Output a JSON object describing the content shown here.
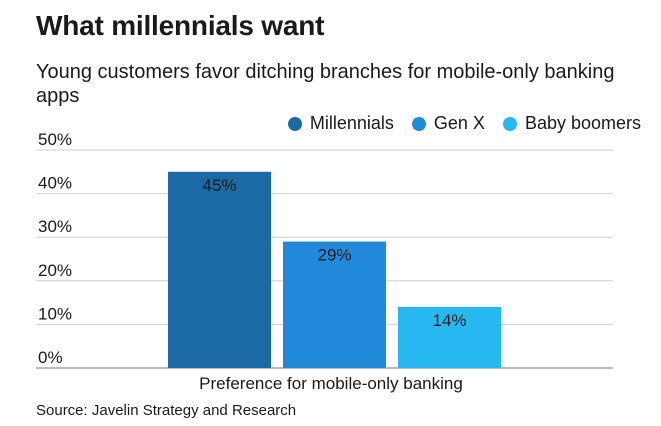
{
  "title": "What millennials want",
  "subtitle": "Young customers favor ditching branches for mobile-only banking apps",
  "source": "Source: Javelin Strategy and Research",
  "chart_data": {
    "type": "bar",
    "categories": [
      "Preference for mobile-only banking"
    ],
    "series": [
      {
        "name": "Millennials",
        "values": [
          45
        ],
        "label": "45%",
        "color": "#1b6aa6"
      },
      {
        "name": "Gen X",
        "values": [
          29
        ],
        "label": "29%",
        "color": "#2189d9"
      },
      {
        "name": "Baby boomers",
        "values": [
          14
        ],
        "label": "14%",
        "color": "#27b8f2"
      }
    ],
    "xlabel": "Preference for mobile-only banking",
    "ylabel": "",
    "ylim": [
      0,
      50
    ],
    "yticks": [
      0,
      10,
      20,
      30,
      40,
      50
    ],
    "ytick_labels": [
      "0%",
      "10%",
      "20%",
      "30%",
      "40%",
      "50%"
    ],
    "grid": true,
    "legend_position": "top-right"
  }
}
